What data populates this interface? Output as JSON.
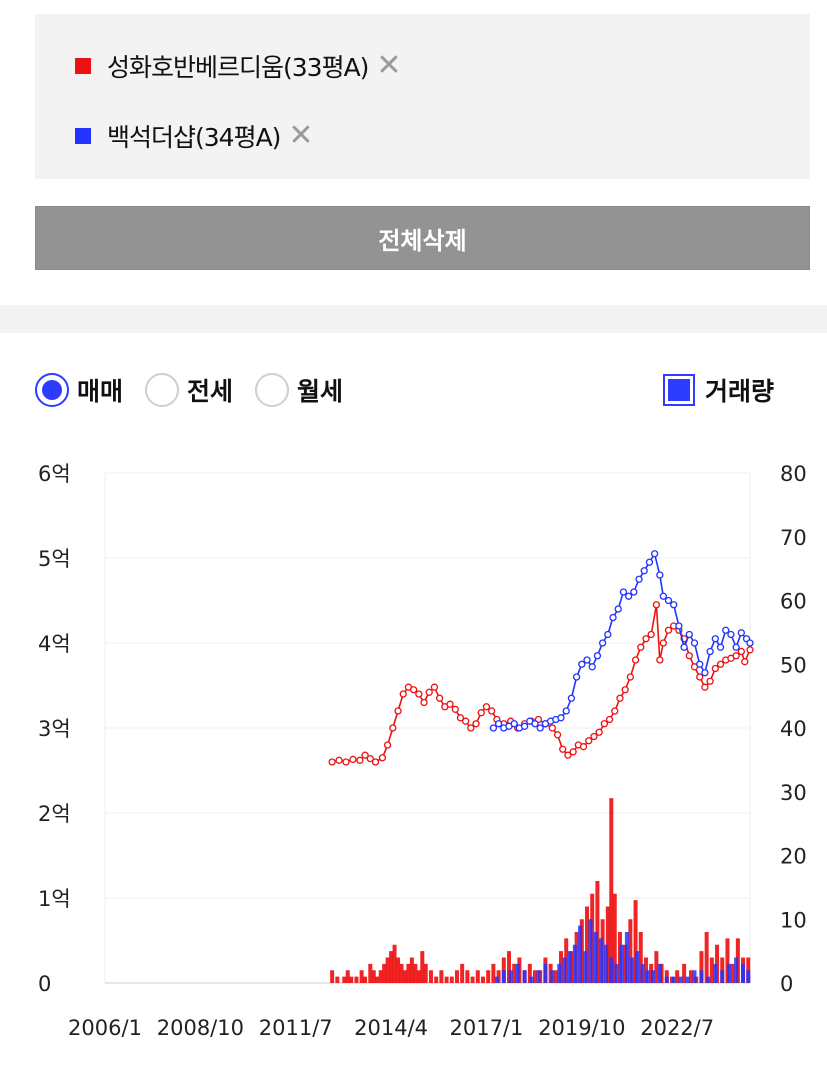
{
  "compare": {
    "items": [
      {
        "label": "성화호반베르디움(33평A)",
        "color": "#ee1111",
        "close_icon": "close-icon"
      },
      {
        "label": "백석더샵(34평A)",
        "color": "#2233ff",
        "close_icon": "close-icon"
      }
    ],
    "delete_all_label": "전체삭제"
  },
  "filters": {
    "radios": [
      {
        "label": "매매",
        "selected": true
      },
      {
        "label": "전세",
        "selected": false
      },
      {
        "label": "월세",
        "selected": false
      }
    ],
    "volume_label": "거래량",
    "volume_checked": true
  },
  "chart_data": {
    "type": "line",
    "x_tick_labels": [
      "2006/1",
      "2008/10",
      "2011/7",
      "2014/4",
      "2017/1",
      "2019/10",
      "2022/7"
    ],
    "x_range": [
      2006.0,
      2024.6
    ],
    "y_left_tick_labels": [
      "0",
      "1억",
      "2억",
      "3억",
      "4억",
      "5억",
      "6억"
    ],
    "y_left_range": [
      0,
      6
    ],
    "y_right_tick_labels": [
      "0",
      "10",
      "20",
      "30",
      "40",
      "50",
      "60",
      "70",
      "80"
    ],
    "y_right_range": [
      0,
      80
    ],
    "grid": true,
    "series": [
      {
        "name": "성화호반베르디움(33평A)",
        "color": "#ee1111",
        "price_points": [
          [
            2012.55,
            2.6
          ],
          [
            2012.75,
            2.62
          ],
          [
            2012.95,
            2.6
          ],
          [
            2013.15,
            2.63
          ],
          [
            2013.35,
            2.62
          ],
          [
            2013.5,
            2.68
          ],
          [
            2013.65,
            2.64
          ],
          [
            2013.8,
            2.6
          ],
          [
            2014.0,
            2.65
          ],
          [
            2014.15,
            2.8
          ],
          [
            2014.3,
            3.0
          ],
          [
            2014.45,
            3.2
          ],
          [
            2014.6,
            3.4
          ],
          [
            2014.75,
            3.48
          ],
          [
            2014.9,
            3.45
          ],
          [
            2015.05,
            3.4
          ],
          [
            2015.2,
            3.3
          ],
          [
            2015.35,
            3.42
          ],
          [
            2015.5,
            3.48
          ],
          [
            2015.65,
            3.35
          ],
          [
            2015.8,
            3.25
          ],
          [
            2015.95,
            3.28
          ],
          [
            2016.1,
            3.22
          ],
          [
            2016.25,
            3.12
          ],
          [
            2016.4,
            3.08
          ],
          [
            2016.55,
            3.0
          ],
          [
            2016.7,
            3.05
          ],
          [
            2016.85,
            3.18
          ],
          [
            2017.0,
            3.25
          ],
          [
            2017.15,
            3.2
          ],
          [
            2017.3,
            3.1
          ],
          [
            2017.5,
            3.05
          ],
          [
            2017.7,
            3.08
          ],
          [
            2017.9,
            3.0
          ],
          [
            2018.1,
            3.05
          ],
          [
            2018.3,
            3.08
          ],
          [
            2018.5,
            3.1
          ],
          [
            2018.7,
            3.05
          ],
          [
            2018.9,
            3.0
          ],
          [
            2019.05,
            2.92
          ],
          [
            2019.2,
            2.75
          ],
          [
            2019.35,
            2.68
          ],
          [
            2019.5,
            2.72
          ],
          [
            2019.65,
            2.8
          ],
          [
            2019.8,
            2.78
          ],
          [
            2019.95,
            2.85
          ],
          [
            2020.1,
            2.9
          ],
          [
            2020.25,
            2.95
          ],
          [
            2020.4,
            3.05
          ],
          [
            2020.55,
            3.1
          ],
          [
            2020.7,
            3.2
          ],
          [
            2020.85,
            3.35
          ],
          [
            2021.0,
            3.45
          ],
          [
            2021.15,
            3.6
          ],
          [
            2021.3,
            3.8
          ],
          [
            2021.45,
            3.95
          ],
          [
            2021.6,
            4.05
          ],
          [
            2021.75,
            4.1
          ],
          [
            2021.9,
            4.45
          ],
          [
            2022.0,
            3.8
          ],
          [
            2022.1,
            4.0
          ],
          [
            2022.25,
            4.15
          ],
          [
            2022.4,
            4.2
          ],
          [
            2022.55,
            4.15
          ],
          [
            2022.7,
            4.05
          ],
          [
            2022.85,
            3.85
          ],
          [
            2023.0,
            3.72
          ],
          [
            2023.15,
            3.6
          ],
          [
            2023.3,
            3.48
          ],
          [
            2023.45,
            3.55
          ],
          [
            2023.6,
            3.7
          ],
          [
            2023.75,
            3.75
          ],
          [
            2023.9,
            3.8
          ],
          [
            2024.05,
            3.82
          ],
          [
            2024.2,
            3.85
          ],
          [
            2024.35,
            3.9
          ],
          [
            2024.45,
            3.78
          ],
          [
            2024.6,
            3.92
          ]
        ],
        "volume_bars": [
          [
            2012.55,
            2
          ],
          [
            2012.7,
            1
          ],
          [
            2012.9,
            1
          ],
          [
            2013.0,
            2
          ],
          [
            2013.1,
            1
          ],
          [
            2013.25,
            1
          ],
          [
            2013.4,
            2
          ],
          [
            2013.5,
            1
          ],
          [
            2013.65,
            3
          ],
          [
            2013.75,
            2
          ],
          [
            2013.85,
            1
          ],
          [
            2013.95,
            2
          ],
          [
            2014.05,
            3
          ],
          [
            2014.15,
            4
          ],
          [
            2014.25,
            5
          ],
          [
            2014.35,
            6
          ],
          [
            2014.45,
            4
          ],
          [
            2014.55,
            3
          ],
          [
            2014.65,
            2
          ],
          [
            2014.75,
            3
          ],
          [
            2014.85,
            4
          ],
          [
            2014.95,
            3
          ],
          [
            2015.05,
            2
          ],
          [
            2015.15,
            5
          ],
          [
            2015.25,
            3
          ],
          [
            2015.4,
            2
          ],
          [
            2015.55,
            1
          ],
          [
            2015.7,
            2
          ],
          [
            2015.85,
            1
          ],
          [
            2016.0,
            1
          ],
          [
            2016.15,
            2
          ],
          [
            2016.3,
            3
          ],
          [
            2016.45,
            2
          ],
          [
            2016.6,
            1
          ],
          [
            2016.75,
            2
          ],
          [
            2016.9,
            1
          ],
          [
            2017.05,
            2
          ],
          [
            2017.2,
            3
          ],
          [
            2017.35,
            2
          ],
          [
            2017.5,
            4
          ],
          [
            2017.65,
            5
          ],
          [
            2017.8,
            3
          ],
          [
            2017.95,
            4
          ],
          [
            2018.1,
            2
          ],
          [
            2018.25,
            3
          ],
          [
            2018.4,
            2
          ],
          [
            2018.55,
            2
          ],
          [
            2018.7,
            4
          ],
          [
            2018.85,
            3
          ],
          [
            2019.0,
            2
          ],
          [
            2019.15,
            5
          ],
          [
            2019.3,
            7
          ],
          [
            2019.45,
            5
          ],
          [
            2019.6,
            8
          ],
          [
            2019.75,
            10
          ],
          [
            2019.9,
            12
          ],
          [
            2020.05,
            14
          ],
          [
            2020.2,
            16
          ],
          [
            2020.35,
            10
          ],
          [
            2020.5,
            12
          ],
          [
            2020.6,
            29
          ],
          [
            2020.7,
            14
          ],
          [
            2020.85,
            8
          ],
          [
            2021.0,
            6
          ],
          [
            2021.15,
            10
          ],
          [
            2021.3,
            13
          ],
          [
            2021.45,
            8
          ],
          [
            2021.6,
            4
          ],
          [
            2021.75,
            3
          ],
          [
            2021.9,
            5
          ],
          [
            2022.05,
            3
          ],
          [
            2022.2,
            2
          ],
          [
            2022.35,
            1
          ],
          [
            2022.5,
            2
          ],
          [
            2022.7,
            3
          ],
          [
            2022.9,
            2
          ],
          [
            2023.05,
            1
          ],
          [
            2023.2,
            5
          ],
          [
            2023.35,
            8
          ],
          [
            2023.5,
            4
          ],
          [
            2023.65,
            6
          ],
          [
            2023.8,
            4
          ],
          [
            2023.95,
            7
          ],
          [
            2024.1,
            3
          ],
          [
            2024.25,
            7
          ],
          [
            2024.4,
            4
          ],
          [
            2024.55,
            4
          ]
        ]
      },
      {
        "name": "백석더샵(34평A)",
        "color": "#2233ff",
        "price_points": [
          [
            2017.2,
            3.0
          ],
          [
            2017.35,
            3.05
          ],
          [
            2017.5,
            3.0
          ],
          [
            2017.65,
            3.02
          ],
          [
            2017.8,
            3.05
          ],
          [
            2017.95,
            3.0
          ],
          [
            2018.1,
            3.02
          ],
          [
            2018.25,
            3.08
          ],
          [
            2018.4,
            3.05
          ],
          [
            2018.55,
            3.0
          ],
          [
            2018.7,
            3.05
          ],
          [
            2018.85,
            3.08
          ],
          [
            2019.0,
            3.1
          ],
          [
            2019.15,
            3.12
          ],
          [
            2019.3,
            3.2
          ],
          [
            2019.45,
            3.35
          ],
          [
            2019.6,
            3.6
          ],
          [
            2019.75,
            3.75
          ],
          [
            2019.9,
            3.8
          ],
          [
            2020.05,
            3.72
          ],
          [
            2020.2,
            3.85
          ],
          [
            2020.35,
            4.0
          ],
          [
            2020.5,
            4.1
          ],
          [
            2020.65,
            4.3
          ],
          [
            2020.8,
            4.4
          ],
          [
            2020.95,
            4.6
          ],
          [
            2021.1,
            4.55
          ],
          [
            2021.25,
            4.6
          ],
          [
            2021.4,
            4.75
          ],
          [
            2021.55,
            4.85
          ],
          [
            2021.7,
            4.95
          ],
          [
            2021.85,
            5.05
          ],
          [
            2022.0,
            4.8
          ],
          [
            2022.1,
            4.55
          ],
          [
            2022.25,
            4.5
          ],
          [
            2022.4,
            4.45
          ],
          [
            2022.55,
            4.2
          ],
          [
            2022.7,
            3.95
          ],
          [
            2022.85,
            4.1
          ],
          [
            2023.0,
            4.0
          ],
          [
            2023.15,
            3.75
          ],
          [
            2023.3,
            3.65
          ],
          [
            2023.45,
            3.9
          ],
          [
            2023.6,
            4.05
          ],
          [
            2023.75,
            3.95
          ],
          [
            2023.9,
            4.15
          ],
          [
            2024.05,
            4.1
          ],
          [
            2024.2,
            3.95
          ],
          [
            2024.35,
            4.12
          ],
          [
            2024.5,
            4.05
          ],
          [
            2024.6,
            4.0
          ]
        ],
        "volume_bars": [
          [
            2017.3,
            1
          ],
          [
            2017.5,
            2
          ],
          [
            2017.7,
            2
          ],
          [
            2017.9,
            3
          ],
          [
            2018.1,
            2
          ],
          [
            2018.3,
            1
          ],
          [
            2018.5,
            2
          ],
          [
            2018.7,
            3
          ],
          [
            2018.9,
            2
          ],
          [
            2019.1,
            3
          ],
          [
            2019.25,
            4
          ],
          [
            2019.4,
            5
          ],
          [
            2019.55,
            6
          ],
          [
            2019.7,
            9
          ],
          [
            2019.85,
            5
          ],
          [
            2020.0,
            10
          ],
          [
            2020.15,
            8
          ],
          [
            2020.3,
            7
          ],
          [
            2020.45,
            6
          ],
          [
            2020.6,
            4
          ],
          [
            2020.75,
            3
          ],
          [
            2020.9,
            6
          ],
          [
            2021.05,
            8
          ],
          [
            2021.2,
            4
          ],
          [
            2021.35,
            5
          ],
          [
            2021.5,
            3
          ],
          [
            2021.65,
            2
          ],
          [
            2021.8,
            2
          ],
          [
            2022.0,
            3
          ],
          [
            2022.2,
            1
          ],
          [
            2022.4,
            1
          ],
          [
            2022.6,
            1
          ],
          [
            2022.8,
            1
          ],
          [
            2023.0,
            2
          ],
          [
            2023.2,
            2
          ],
          [
            2023.4,
            1
          ],
          [
            2023.6,
            3
          ],
          [
            2023.8,
            2
          ],
          [
            2024.0,
            3
          ],
          [
            2024.2,
            4
          ],
          [
            2024.4,
            3
          ],
          [
            2024.55,
            2
          ]
        ]
      }
    ]
  }
}
